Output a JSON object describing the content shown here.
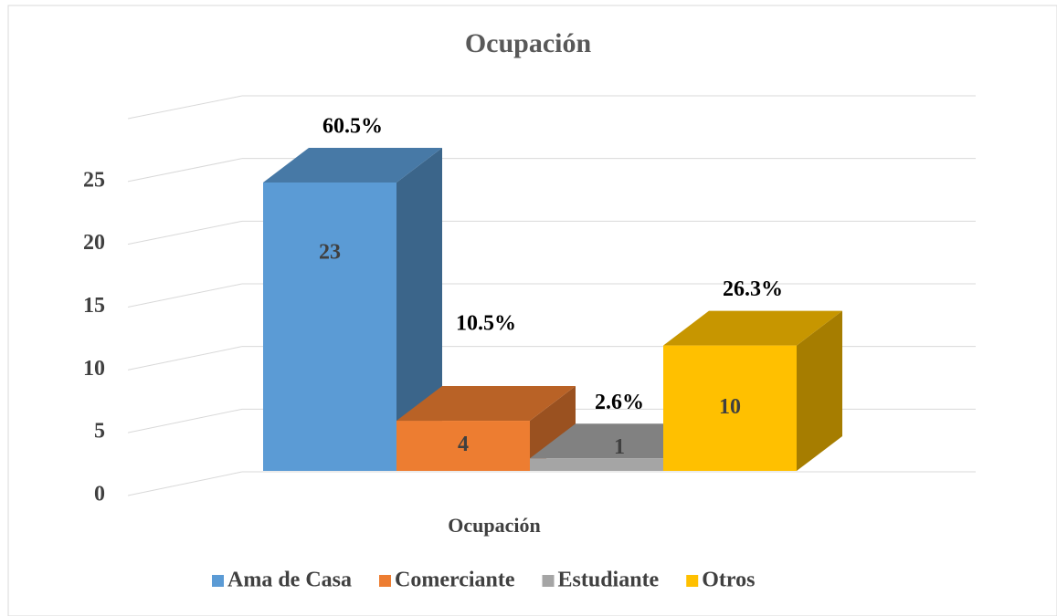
{
  "chart_data": {
    "type": "bar3d",
    "title": "Ocupación",
    "x_label": "Ocupación",
    "series": [
      {
        "name": "Ama de Casa",
        "color": "#5b9bd5",
        "values": [
          23
        ],
        "percent_label": "60.5%"
      },
      {
        "name": "Comerciante",
        "color": "#ed7d31",
        "values": [
          4
        ],
        "percent_label": "10.5%"
      },
      {
        "name": "Estudiante",
        "color": "#a5a5a5",
        "values": [
          1
        ],
        "percent_label": "2.6%"
      },
      {
        "name": "Otros",
        "color": "#ffc000",
        "values": [
          10
        ],
        "percent_label": "26.3%"
      }
    ],
    "ylim": [
      0,
      30
    ],
    "yticks": [
      0,
      5,
      10,
      15,
      20,
      25
    ],
    "grid": true,
    "legend": "bottom"
  }
}
